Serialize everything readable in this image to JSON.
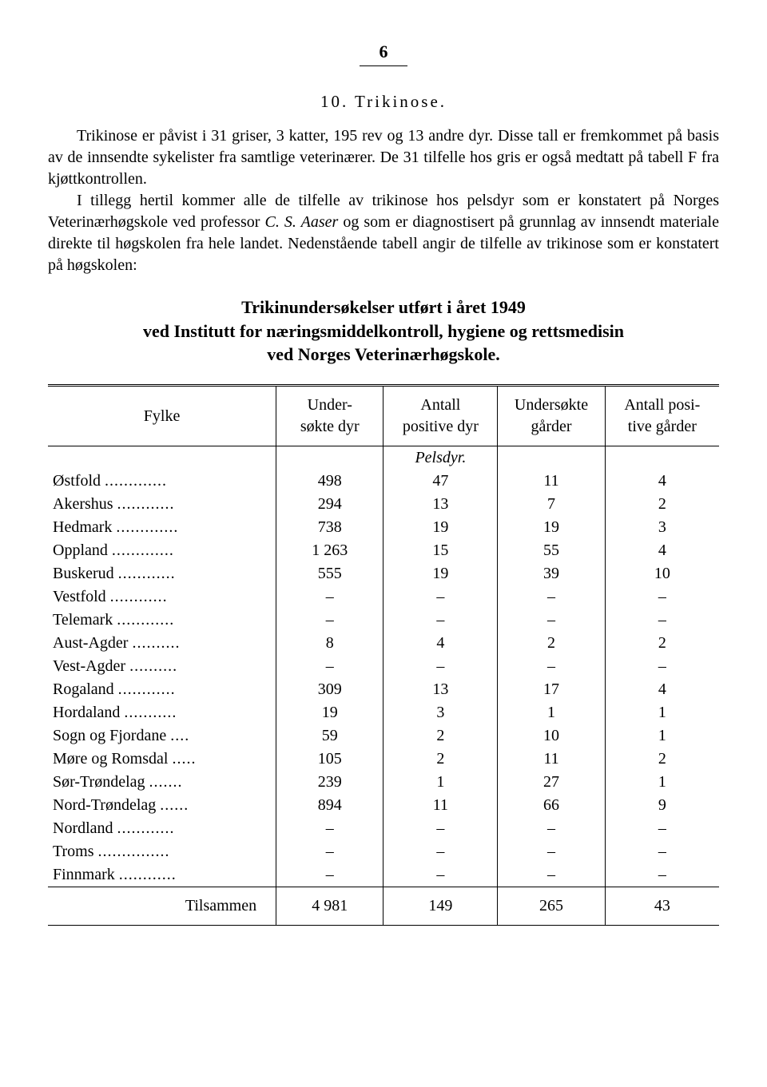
{
  "page_number": "6",
  "section_heading": "10. Trikinose.",
  "paragraph_html": "Trikinose er påvist i 31 griser, 3 katter, 195 rev og 13 andre dyr. Disse tall er fremkommet på basis av de innsendte sykelister fra samtlige veterinærer. De 31 tilfelle hos gris er også medtatt på tabell F fra kjøttkontrollen.",
  "paragraph2_html": "I tillegg hertil kommer alle de tilfelle av trikinose hos pelsdyr som er konstatert på Norges Veterinærhøgskole ved professor <i>C. S. Aaser</i> og som er diagnostisert på grunnlag av innsendt materiale direkte til høgskolen fra hele landet. Nedenstående tabell angir de tilfelle av trikinose som er konstatert på høgskolen:",
  "table_title_line1": "Trikinundersøkelser utført i året 1949",
  "table_title_line2": "ved Institutt for næringsmiddelkontroll, hygiene og rettsmedisin",
  "table_title_line3": "ved Norges Veterinærhøgskole.",
  "columns": {
    "fylke": "Fylke",
    "undersokte_dyr": "Under-\nsøkte dyr",
    "antall_positive_dyr": "Antall\npositive dyr",
    "undersokte_garder": "Undersøkte\ngårder",
    "antall_positive_garder": "Antall posi-\ntive gårder"
  },
  "section_label": "Pelsdyr.",
  "rows": [
    {
      "fylke": "Østfold",
      "c1": "498",
      "c2": "47",
      "c3": "11",
      "c4": "4"
    },
    {
      "fylke": "Akershus",
      "c1": "294",
      "c2": "13",
      "c3": "7",
      "c4": "2"
    },
    {
      "fylke": "Hedmark",
      "c1": "738",
      "c2": "19",
      "c3": "19",
      "c4": "3"
    },
    {
      "fylke": "Oppland",
      "c1": "1 263",
      "c2": "15",
      "c3": "55",
      "c4": "4"
    },
    {
      "fylke": "Buskerud",
      "c1": "555",
      "c2": "19",
      "c3": "39",
      "c4": "10"
    },
    {
      "fylke": "Vestfold",
      "c1": "–",
      "c2": "–",
      "c3": "–",
      "c4": "–"
    },
    {
      "fylke": "Telemark",
      "c1": "–",
      "c2": "–",
      "c3": "–",
      "c4": "–"
    },
    {
      "fylke": "Aust-Agder",
      "c1": "8",
      "c2": "4",
      "c3": "2",
      "c4": "2"
    },
    {
      "fylke": "Vest-Agder",
      "c1": "–",
      "c2": "–",
      "c3": "–",
      "c4": "–"
    },
    {
      "fylke": "Rogaland",
      "c1": "309",
      "c2": "13",
      "c3": "17",
      "c4": "4"
    },
    {
      "fylke": "Hordaland",
      "c1": "19",
      "c2": "3",
      "c3": "1",
      "c4": "1"
    },
    {
      "fylke": "Sogn og Fjordane",
      "c1": "59",
      "c2": "2",
      "c3": "10",
      "c4": "1"
    },
    {
      "fylke": "Møre og Romsdal",
      "c1": "105",
      "c2": "2",
      "c3": "11",
      "c4": "2"
    },
    {
      "fylke": "Sør-Trøndelag",
      "c1": "239",
      "c2": "1",
      "c3": "27",
      "c4": "1"
    },
    {
      "fylke": "Nord-Trøndelag",
      "c1": "894",
      "c2": "11",
      "c3": "66",
      "c4": "9"
    },
    {
      "fylke": "Nordland",
      "c1": "–",
      "c2": "–",
      "c3": "–",
      "c4": "–"
    },
    {
      "fylke": "Troms",
      "c1": "–",
      "c2": "–",
      "c3": "–",
      "c4": "–"
    },
    {
      "fylke": "Finnmark",
      "c1": "–",
      "c2": "–",
      "c3": "–",
      "c4": "–"
    }
  ],
  "totals": {
    "label": "Tilsammen",
    "c1": "4 981",
    "c2": "149",
    "c3": "265",
    "c4": "43"
  }
}
